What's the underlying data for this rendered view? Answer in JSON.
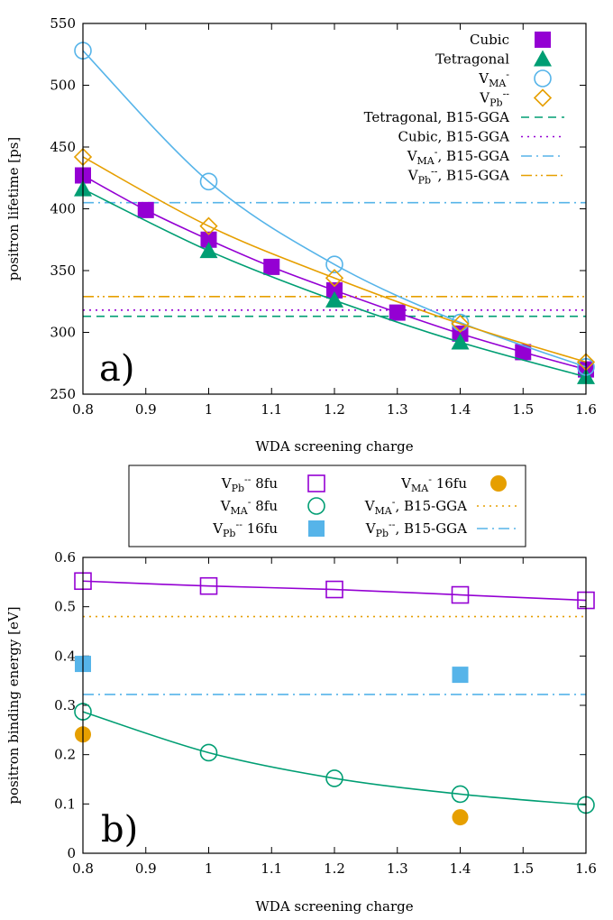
{
  "colors": {
    "cubic": "#9400d3",
    "tetragonal": "#009e73",
    "vma": "#56b4e9",
    "vpb": "#e69f00"
  },
  "chart_data": [
    {
      "type": "line",
      "panel_label": "a)",
      "xlabel": "WDA screening charge",
      "ylabel": "positron lifetime [ps]",
      "xlim": [
        0.8,
        1.6
      ],
      "ylim": [
        250,
        550
      ],
      "xticks": [
        "0.8",
        "0.9",
        "1",
        "1.1",
        "1.2",
        "1.3",
        "1.4",
        "1.5",
        "1.6"
      ],
      "yticks": [
        "250",
        "300",
        "350",
        "400",
        "450",
        "500",
        "550"
      ],
      "series": [
        {
          "name": "Cubic",
          "marker": "filled-square",
          "color": "#9400d3",
          "x": [
            0.8,
            0.9,
            1.0,
            1.1,
            1.2,
            1.3,
            1.4,
            1.5,
            1.6
          ],
          "values": [
            427,
            399,
            375,
            353,
            334,
            316,
            299,
            284,
            270
          ]
        },
        {
          "name": "Tetragonal",
          "marker": "filled-triangle",
          "color": "#009e73",
          "x": [
            0.8,
            1.0,
            1.2,
            1.4,
            1.6
          ],
          "values": [
            416,
            366,
            326,
            292,
            264
          ]
        },
        {
          "name_base": "V",
          "name_sub": "MA",
          "name_sup": "-",
          "marker": "open-circle",
          "color": "#56b4e9",
          "x": [
            0.8,
            1.0,
            1.2,
            1.4,
            1.6
          ],
          "values": [
            528,
            422,
            355,
            308,
            272
          ]
        },
        {
          "name_base": "V",
          "name_sub": "Pb",
          "name_sup": "--",
          "marker": "open-diamond",
          "color": "#e69f00",
          "x": [
            0.8,
            1.0,
            1.2,
            1.4,
            1.6
          ],
          "values": [
            442,
            386,
            344,
            307,
            276
          ]
        }
      ],
      "reference_lines": [
        {
          "name": "Tetragonal, B15-GGA",
          "style": "dashed",
          "color": "#009e73",
          "value": 313
        },
        {
          "name": "Cubic, B15-GGA",
          "style": "dotted",
          "color": "#9400d3",
          "value": 318
        },
        {
          "name_base": "V",
          "name_sub": "MA",
          "name_sup": "-",
          "name_suffix": ", B15-GGA",
          "style": "dash-dot",
          "color": "#56b4e9",
          "value": 405
        },
        {
          "name_base": "V",
          "name_sub": "Pb",
          "name_sup": "--",
          "name_suffix": ", B15-GGA",
          "style": "dash-dot-dot",
          "color": "#e69f00",
          "value": 329
        }
      ]
    },
    {
      "type": "line",
      "panel_label": "b)",
      "xlabel": "WDA screening charge",
      "ylabel": "positron binding energy [eV]",
      "xlim": [
        0.8,
        1.6
      ],
      "ylim": [
        0,
        0.6
      ],
      "xticks": [
        "0.8",
        "0.9",
        "1",
        "1.1",
        "1.2",
        "1.3",
        "1.4",
        "1.5",
        "1.6"
      ],
      "yticks": [
        "0",
        "0.1",
        "0.2",
        "0.3",
        "0.4",
        "0.5",
        "0.6"
      ],
      "series": [
        {
          "name_base": "V",
          "name_sub": "Pb",
          "name_sup": "--",
          "name_suffix": " 8fu",
          "marker": "open-square",
          "color": "#9400d3",
          "x": [
            0.8,
            1.0,
            1.2,
            1.4,
            1.6
          ],
          "values": [
            0.552,
            0.542,
            0.535,
            0.524,
            0.513
          ]
        },
        {
          "name_base": "V",
          "name_sub": "MA",
          "name_sup": "-",
          "name_suffix": " 8fu",
          "marker": "open-circle",
          "color": "#009e73",
          "x": [
            0.8,
            1.0,
            1.2,
            1.4,
            1.6
          ],
          "values": [
            0.287,
            0.204,
            0.152,
            0.12,
            0.098
          ]
        },
        {
          "name_base": "V",
          "name_sub": "Pb",
          "name_sup": "--",
          "name_suffix": " 16fu",
          "marker": "filled-square",
          "color": "#56b4e9",
          "x": [
            0.8,
            1.4
          ],
          "values": [
            0.384,
            0.362
          ]
        },
        {
          "name_base": "V",
          "name_sub": "MA",
          "name_sup": "-",
          "name_suffix": " 16fu",
          "marker": "filled-circle",
          "color": "#e69f00",
          "x": [
            0.8,
            1.4
          ],
          "values": [
            0.241,
            0.073
          ]
        }
      ],
      "reference_lines": [
        {
          "name_base": "V",
          "name_sub": "MA",
          "name_sup": "-",
          "name_suffix": ", B15-GGA",
          "style": "dotted",
          "color": "#e69f00",
          "value": 0.48
        },
        {
          "name_base": "V",
          "name_sub": "Pb",
          "name_sup": "--",
          "name_suffix": ", B15-GGA",
          "style": "dash-dot",
          "color": "#56b4e9",
          "value": 0.322
        }
      ]
    }
  ]
}
